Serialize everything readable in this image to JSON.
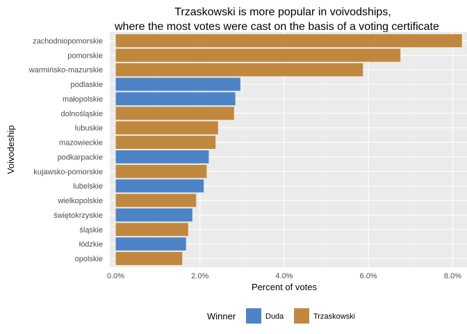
{
  "chart_data": {
    "type": "bar",
    "orientation": "horizontal",
    "title_line1": "Trzaskowski is more popular in voivodships,",
    "title_line2": "where the most votes were cast on the basis of a voting certificate",
    "xlabel": "Percent of votes",
    "ylabel": "Voivodeship",
    "xlim": [
      -0.0014,
      0.0834
    ],
    "xticks": [
      {
        "value": 0.0,
        "label": "0.0%"
      },
      {
        "value": 0.02,
        "label": "2.0%"
      },
      {
        "value": 0.04,
        "label": "4.0%"
      },
      {
        "value": 0.06,
        "label": "6.0%"
      },
      {
        "value": 0.08,
        "label": "8.0%"
      }
    ],
    "grid": true,
    "legend": {
      "title": "Winner",
      "position": "bottom",
      "entries": [
        {
          "name": "Duda",
          "color": "#4D84C8"
        },
        {
          "name": "Trzaskowski",
          "color": "#C0883F"
        }
      ]
    },
    "colors": {
      "Duda": "#4D84C8",
      "Trzaskowski": "#C0883F",
      "panel": "#EBEBEB",
      "grid_major": "#FFFFFF",
      "grid_minor": "#F5F5F5"
    },
    "bars": [
      {
        "category": "zachodniopomorskie",
        "value": 0.0822,
        "winner": "Trzaskowski"
      },
      {
        "category": "pomorskie",
        "value": 0.0676,
        "winner": "Trzaskowski"
      },
      {
        "category": "warmińsko-mazurskie",
        "value": 0.0587,
        "winner": "Trzaskowski"
      },
      {
        "category": "podlaskie",
        "value": 0.0296,
        "winner": "Duda"
      },
      {
        "category": "małopolskie",
        "value": 0.0284,
        "winner": "Duda"
      },
      {
        "category": "dolnośląskie",
        "value": 0.0281,
        "winner": "Trzaskowski"
      },
      {
        "category": "lubuskie",
        "value": 0.0243,
        "winner": "Trzaskowski"
      },
      {
        "category": "mazowieckie",
        "value": 0.0237,
        "winner": "Trzaskowski"
      },
      {
        "category": "podkarpackie",
        "value": 0.0221,
        "winner": "Duda"
      },
      {
        "category": "kujawsko-pomorskie",
        "value": 0.0216,
        "winner": "Trzaskowski"
      },
      {
        "category": "lubelskie",
        "value": 0.0209,
        "winner": "Duda"
      },
      {
        "category": "wielkopolskie",
        "value": 0.0191,
        "winner": "Trzaskowski"
      },
      {
        "category": "świętokrzyskie",
        "value": 0.0182,
        "winner": "Duda"
      },
      {
        "category": "śląskie",
        "value": 0.0172,
        "winner": "Trzaskowski"
      },
      {
        "category": "łódzkie",
        "value": 0.0167,
        "winner": "Duda"
      },
      {
        "category": "opolskie",
        "value": 0.0158,
        "winner": "Trzaskowski"
      }
    ]
  }
}
